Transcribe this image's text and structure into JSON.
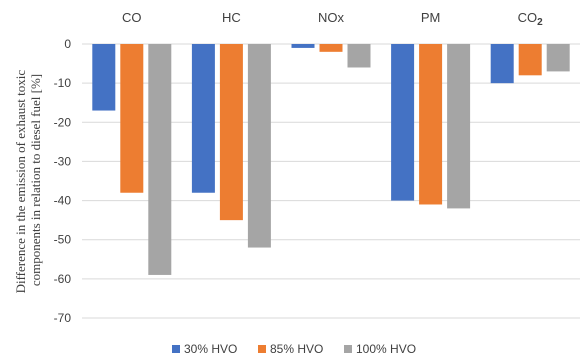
{
  "chart_data": {
    "type": "bar",
    "categories": [
      "CO",
      "HC",
      "NOx",
      "PM",
      "CO"
    ],
    "category_subscripts": [
      "",
      "",
      "",
      "",
      "2"
    ],
    "ylabel_lines": [
      "Difference in the emission of exhaust toxic",
      "components in relation to diesel fuel [%]"
    ],
    "yticks": [
      0,
      -10,
      -20,
      -30,
      -40,
      -50,
      -60,
      -70
    ],
    "ylim": [
      -70,
      0
    ],
    "grid": true,
    "legend_position": "bottom",
    "series": [
      {
        "name": "30% HVO",
        "color": "#4472c4",
        "values": [
          -17,
          -38,
          -1,
          -40,
          -10
        ]
      },
      {
        "name": "85% HVO",
        "color": "#ed7d31",
        "values": [
          -38,
          -45,
          -2,
          -41,
          -8
        ]
      },
      {
        "name": "100% HVO",
        "color": "#a5a5a5",
        "values": [
          -59,
          -52,
          -6,
          -42,
          -7
        ]
      }
    ]
  }
}
